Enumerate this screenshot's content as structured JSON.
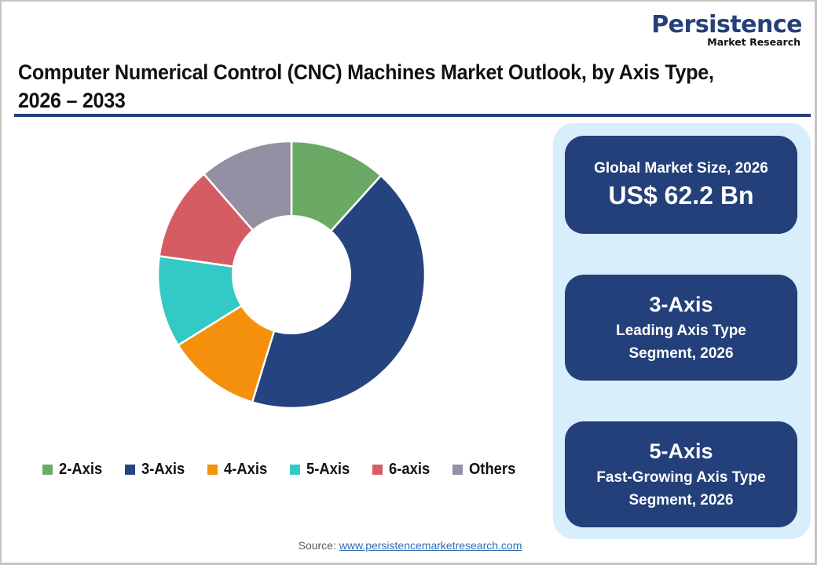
{
  "logo": {
    "name": "Persistence",
    "subtitle": "Market Research",
    "color": "#25407a"
  },
  "title": "Computer Numerical Control (CNC) Machines Market Outlook, by Axis Type, 2026 – 2033",
  "legend": [
    {
      "label": "2-Axis",
      "color": "#6aaa64"
    },
    {
      "label": "3-Axis",
      "color": "#24437f"
    },
    {
      "label": "4-Axis",
      "color": "#f5900c"
    },
    {
      "label": "5-Axis",
      "color": "#33c9c4"
    },
    {
      "label": "6-axis",
      "color": "#d45c62"
    },
    {
      "label": "Others",
      "color": "#948fa3"
    }
  ],
  "cards": {
    "market_size": {
      "label": "Global Market Size, 2026",
      "value": "US$ 62.2 Bn"
    },
    "leading": {
      "head": "3-Axis",
      "line1": "Leading Axis Type",
      "line2": "Segment, 2026"
    },
    "fastest": {
      "head": "5-Axis",
      "line1": "Fast-Growing Axis Type",
      "line2": "Segment, 2026"
    }
  },
  "source": {
    "prefix": "Source: ",
    "link_text": "www.persistencemarketresearch.com"
  },
  "chart_data": {
    "type": "pie",
    "subtype": "donut",
    "title": "Computer Numerical Control (CNC) Machines Market Outlook, by Axis Type, 2026 – 2033",
    "categories": [
      "2-Axis",
      "3-Axis",
      "4-Axis",
      "5-Axis",
      "6-axis",
      "Others"
    ],
    "values": [
      11.7,
      43.1,
      11.4,
      11.1,
      11.4,
      11.4
    ],
    "unit": "% share (estimated from slice angles)",
    "colors": [
      "#6aaa64",
      "#24437f",
      "#f5900c",
      "#33c9c4",
      "#d45c62",
      "#948fa3"
    ],
    "start_angle_deg": 0,
    "direction": "clockwise",
    "inner_radius_ratio": 0.44,
    "legend_position": "bottom",
    "annotations": [
      "Global Market Size, 2026: US$ 62.2 Bn",
      "3-Axis: Leading Axis Type Segment, 2026",
      "5-Axis: Fast-Growing Axis Type Segment, 2026"
    ]
  }
}
